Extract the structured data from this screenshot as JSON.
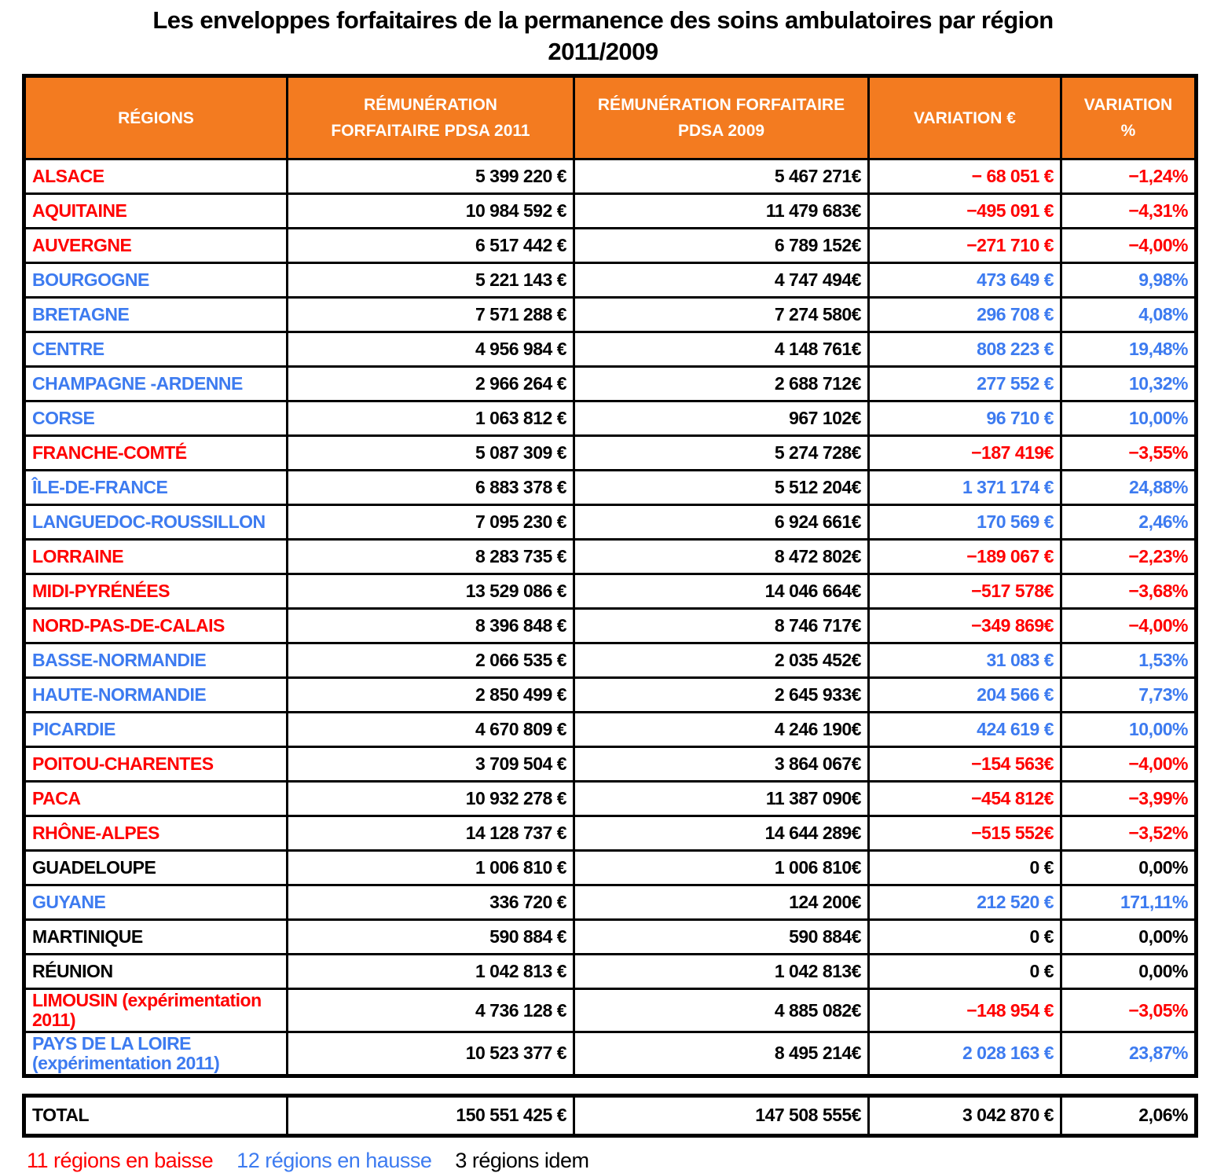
{
  "title": {
    "line1": "Les enveloppes forfaitaires de la permanence des soins ambulatoires par région",
    "line2": "2011/2009"
  },
  "colors": {
    "header_bg": "#F37B20",
    "header_text": "#FFFFFF",
    "down": "#FF0000",
    "up": "#3D7BF0",
    "same": "#000000"
  },
  "table": {
    "headers": [
      "RÉGIONS",
      "RÉMUNÉRATION FORFAITAIRE PDSA 2011",
      "RÉMUNÉRATION FORFAITAIRE PDSA 2009",
      "VARIATION €",
      "VARIATION %"
    ],
    "rows": [
      {
        "region": "ALSACE",
        "pdsa2011": "5 399 220 €",
        "pdsa2009": "5 467 271€",
        "var_eur": "− 68 051 €",
        "var_pct": "−1,24%",
        "trend": "down"
      },
      {
        "region": "AQUITAINE",
        "pdsa2011": "10 984 592 €",
        "pdsa2009": "11 479 683€",
        "var_eur": "−495 091 €",
        "var_pct": "−4,31%",
        "trend": "down"
      },
      {
        "region": "AUVERGNE",
        "pdsa2011": "6 517 442 €",
        "pdsa2009": "6 789 152€",
        "var_eur": "−271 710 €",
        "var_pct": "−4,00%",
        "trend": "down"
      },
      {
        "region": "BOURGOGNE",
        "pdsa2011": "5 221 143 €",
        "pdsa2009": "4 747 494€",
        "var_eur": "473 649 €",
        "var_pct": "9,98%",
        "trend": "up"
      },
      {
        "region": "BRETAGNE",
        "pdsa2011": "7 571 288 €",
        "pdsa2009": "7 274 580€",
        "var_eur": "296 708 €",
        "var_pct": "4,08%",
        "trend": "up"
      },
      {
        "region": "CENTRE",
        "pdsa2011": "4 956 984 €",
        "pdsa2009": "4 148 761€",
        "var_eur": "808 223 €",
        "var_pct": "19,48%",
        "trend": "up"
      },
      {
        "region": "CHAMPAGNE -ARDENNE",
        "pdsa2011": "2 966 264 €",
        "pdsa2009": "2 688 712€",
        "var_eur": "277 552 €",
        "var_pct": "10,32%",
        "trend": "up"
      },
      {
        "region": "CORSE",
        "pdsa2011": "1 063 812 €",
        "pdsa2009": "967 102€",
        "var_eur": "96 710 €",
        "var_pct": "10,00%",
        "trend": "up"
      },
      {
        "region": "FRANCHE-COMTÉ",
        "pdsa2011": "5 087 309 €",
        "pdsa2009": "5 274 728€",
        "var_eur": "−187 419€",
        "var_pct": "−3,55%",
        "trend": "down"
      },
      {
        "region": "ÎLE-DE-FRANCE",
        "pdsa2011": "6 883 378 €",
        "pdsa2009": "5 512 204€",
        "var_eur": "1 371 174 €",
        "var_pct": "24,88%",
        "trend": "up"
      },
      {
        "region": "LANGUEDOC-ROUSSILLON",
        "pdsa2011": "7 095 230 €",
        "pdsa2009": "6 924 661€",
        "var_eur": "170 569 €",
        "var_pct": "2,46%",
        "trend": "up"
      },
      {
        "region": "LORRAINE",
        "pdsa2011": "8 283 735 €",
        "pdsa2009": "8 472 802€",
        "var_eur": "−189 067 €",
        "var_pct": "−2,23%",
        "trend": "down"
      },
      {
        "region": "MIDI-PYRÉNÉES",
        "pdsa2011": "13 529 086 €",
        "pdsa2009": "14 046 664€",
        "var_eur": "−517 578€",
        "var_pct": "−3,68%",
        "trend": "down"
      },
      {
        "region": "NORD-PAS-DE-CALAIS",
        "pdsa2011": "8 396 848 €",
        "pdsa2009": "8 746 717€",
        "var_eur": "−349 869€",
        "var_pct": "−4,00%",
        "trend": "down"
      },
      {
        "region": "BASSE-NORMANDIE",
        "pdsa2011": "2 066 535 €",
        "pdsa2009": "2 035 452€",
        "var_eur": "31 083 €",
        "var_pct": "1,53%",
        "trend": "up"
      },
      {
        "region": "HAUTE-NORMANDIE",
        "pdsa2011": "2 850 499 €",
        "pdsa2009": "2 645 933€",
        "var_eur": "204 566 €",
        "var_pct": "7,73%",
        "trend": "up"
      },
      {
        "region": "PICARDIE",
        "pdsa2011": "4 670 809 €",
        "pdsa2009": "4 246 190€",
        "var_eur": "424 619 €",
        "var_pct": "10,00%",
        "trend": "up"
      },
      {
        "region": "POITOU-CHARENTES",
        "pdsa2011": "3 709 504 €",
        "pdsa2009": "3 864 067€",
        "var_eur": "−154 563€",
        "var_pct": "−4,00%",
        "trend": "down"
      },
      {
        "region": "PACA",
        "pdsa2011": "10 932 278 €",
        "pdsa2009": "11 387 090€",
        "var_eur": "−454 812€",
        "var_pct": "−3,99%",
        "trend": "down"
      },
      {
        "region": "RHÔNE-ALPES",
        "pdsa2011": "14 128 737 €",
        "pdsa2009": "14 644 289€",
        "var_eur": "−515 552€",
        "var_pct": "−3,52%",
        "trend": "down"
      },
      {
        "region": "GUADELOUPE",
        "pdsa2011": "1 006 810 €",
        "pdsa2009": "1 006 810€",
        "var_eur": "0 €",
        "var_pct": "0,00%",
        "trend": "same"
      },
      {
        "region": "GUYANE",
        "pdsa2011": "336 720 €",
        "pdsa2009": "124 200€",
        "var_eur": "212 520 €",
        "var_pct": "171,11%",
        "trend": "up"
      },
      {
        "region": "MARTINIQUE",
        "pdsa2011": "590 884 €",
        "pdsa2009": "590 884€",
        "var_eur": "0 €",
        "var_pct": "0,00%",
        "trend": "same"
      },
      {
        "region": "RÉUNION",
        "pdsa2011": "1 042 813 €",
        "pdsa2009": "1 042 813€",
        "var_eur": "0 €",
        "var_pct": "0,00%",
        "trend": "same"
      },
      {
        "region": "LIMOUSIN (expérimentation 2011)",
        "pdsa2011": "4 736 128 €",
        "pdsa2009": "4 885 082€",
        "var_eur": "−148 954 €",
        "var_pct": "−3,05%",
        "trend": "down"
      },
      {
        "region": "PAYS DE LA LOIRE (expérimentation 2011)",
        "pdsa2011": "10 523 377 €",
        "pdsa2009": "8 495 214€",
        "var_eur": "2 028 163 €",
        "var_pct": "23,87%",
        "trend": "up"
      }
    ],
    "total": {
      "region": "TOTAL",
      "pdsa2011": "150 551 425 €",
      "pdsa2009": "147 508 555€",
      "var_eur": "3 042 870 €",
      "var_pct": "2,06%",
      "trend": "same"
    }
  },
  "footer": {
    "down": "11 régions en baisse",
    "up": "12 régions en hausse",
    "same": "3 régions idem"
  }
}
